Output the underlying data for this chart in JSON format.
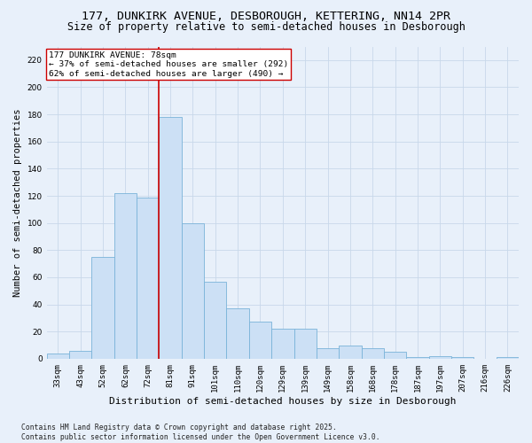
{
  "title_line1": "177, DUNKIRK AVENUE, DESBOROUGH, KETTERING, NN14 2PR",
  "title_line2": "Size of property relative to semi-detached houses in Desborough",
  "xlabel": "Distribution of semi-detached houses by size in Desborough",
  "ylabel": "Number of semi-detached properties",
  "footer": "Contains HM Land Registry data © Crown copyright and database right 2025.\nContains public sector information licensed under the Open Government Licence v3.0.",
  "categories": [
    "33sqm",
    "43sqm",
    "52sqm",
    "62sqm",
    "72sqm",
    "81sqm",
    "91sqm",
    "101sqm",
    "110sqm",
    "120sqm",
    "129sqm",
    "139sqm",
    "149sqm",
    "158sqm",
    "168sqm",
    "178sqm",
    "187sqm",
    "197sqm",
    "207sqm",
    "216sqm",
    "226sqm"
  ],
  "values": [
    4,
    6,
    75,
    122,
    119,
    178,
    100,
    57,
    37,
    27,
    22,
    22,
    8,
    10,
    8,
    5,
    1,
    2,
    1,
    0,
    1
  ],
  "bar_color": "#cce0f5",
  "bar_edge_color": "#7ab3d9",
  "grid_color": "#c8d8ea",
  "background_color": "#e8f0fa",
  "red_line_color": "#cc0000",
  "red_line_x": 4.5,
  "annotation_text": "177 DUNKIRK AVENUE: 78sqm\n← 37% of semi-detached houses are smaller (292)\n62% of semi-detached houses are larger (490) →",
  "annotation_box_color": "#ffffff",
  "annotation_box_edge_color": "#cc0000",
  "ylim": [
    0,
    230
  ],
  "yticks": [
    0,
    20,
    40,
    60,
    80,
    100,
    120,
    140,
    160,
    180,
    200,
    220
  ],
  "title_fontsize": 9.5,
  "subtitle_fontsize": 8.5,
  "ylabel_fontsize": 7.5,
  "xlabel_fontsize": 8.0,
  "tick_fontsize": 6.5,
  "annotation_fontsize": 6.8,
  "footer_fontsize": 5.8
}
